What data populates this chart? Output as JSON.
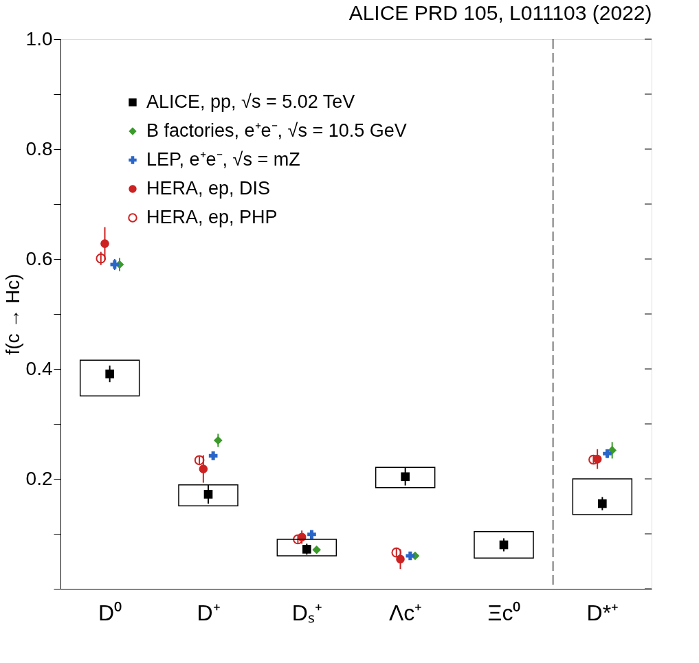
{
  "chart_data": {
    "type": "scatter",
    "title": "ALICE PRD 105, L011103 (2022)",
    "ylabel": "f(c → Hc)",
    "categories": [
      "D⁰",
      "D⁺",
      "Dₛ⁺",
      "Λc⁺",
      "Ξc⁰",
      "D*⁺"
    ],
    "ylim": [
      0,
      1.0
    ],
    "yticks": [
      {
        "value": 0,
        "label": null
      },
      {
        "value": 0.1,
        "label": null
      },
      0.2,
      {
        "value": 0.3,
        "label": null
      },
      0.4,
      {
        "value": 0.5,
        "label": null
      },
      0.6,
      {
        "value": 0.7,
        "label": null
      },
      0.8,
      {
        "value": 0.9,
        "label": null
      },
      {
        "value": 1.0,
        "label": "1.0"
      }
    ],
    "legend": "top",
    "grid": false,
    "series": [
      {
        "name": "ALICE, pp, √s = 5.02 TeV",
        "marker": "square",
        "color": "#000000",
        "values": [
          0.391,
          0.172,
          0.072,
          0.204,
          0.08,
          0.155
        ],
        "errors": [
          0.015,
          0.017,
          0.01,
          0.016,
          0.012,
          0.012
        ]
      },
      {
        "name": "B factories, e⁺e⁻, √s = 10.5 GeV",
        "marker": "diamond",
        "color": "#3a9a2a",
        "values": [
          0.59,
          0.27,
          0.071,
          0.06,
          null,
          0.252
        ],
        "errors": [
          0.012,
          0.012,
          0.005,
          0.005,
          null,
          0.015
        ]
      },
      {
        "name": "LEP, e⁺e⁻, √s = mZ",
        "marker": "cross",
        "color": "#2a66c8",
        "values": [
          0.59,
          0.242,
          0.099,
          0.06,
          null,
          0.246
        ],
        "errors": [
          0.01,
          0.006,
          0.006,
          0.006,
          null,
          0.008
        ]
      },
      {
        "name": "HERA, ep, DIS",
        "marker": "circle",
        "color": "#cc2222",
        "values": [
          0.628,
          0.218,
          0.094,
          0.054,
          null,
          0.236
        ],
        "errors": [
          0.03,
          0.025,
          0.012,
          0.018,
          null,
          0.018
        ]
      },
      {
        "name": "HERA, ep, PHP",
        "marker": "circle_open",
        "color": "#cc2222",
        "values": [
          0.601,
          0.234,
          0.09,
          0.066,
          null,
          0.235
        ],
        "errors": [
          0.012,
          0.007,
          0.007,
          0.008,
          null,
          0.008
        ]
      },
      {
        "type": "bar",
        "color": "#000000",
        "base": [
          0.351,
          0.151,
          0.06,
          0.184,
          0.056,
          0.135
        ],
        "values": [
          0.065,
          0.038,
          0.03,
          0.037,
          0.048,
          0.065
        ]
      }
    ]
  }
}
